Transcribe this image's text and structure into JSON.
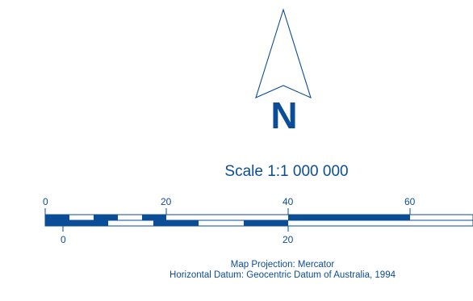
{
  "north_arrow": {
    "letter": "N",
    "icon": "north-arrow-icon"
  },
  "scale": {
    "title": "Scale 1:1 000 000",
    "top_bar_labels": [
      "0",
      "20",
      "40",
      "60"
    ],
    "bottom_bar_labels": [
      "0",
      "20"
    ]
  },
  "projection": {
    "line1": "Map Projection: Mercator",
    "line2": "Horizontal Datum: Geocentric Datum of Australia, 1994"
  },
  "colors": {
    "ink": "#0b4d97",
    "background": "#ffffff"
  }
}
